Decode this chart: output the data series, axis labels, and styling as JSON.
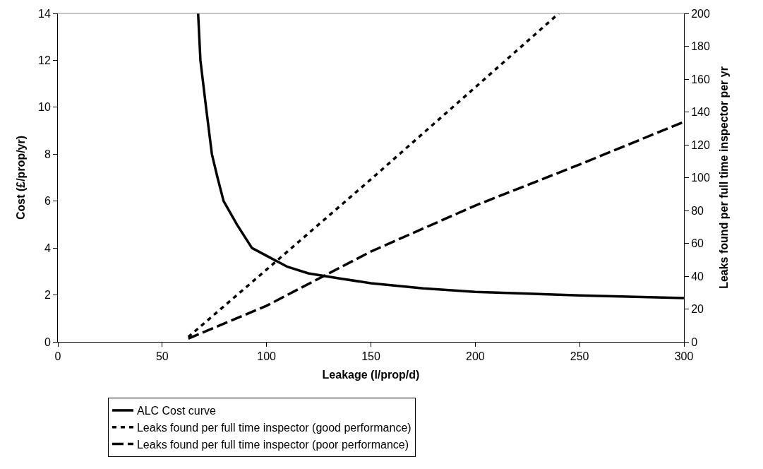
{
  "chart_data": {
    "type": "line",
    "xlabel": "Leakage (l/prop/d)",
    "ylabel": "Cost (£/prop/yr)",
    "y2label": "Leaks found per full time inspector per yr",
    "xlim": [
      0,
      300
    ],
    "xticks": [
      0,
      50,
      100,
      150,
      200,
      250,
      300
    ],
    "ylim": [
      0,
      14
    ],
    "yticks": [
      0,
      2,
      4,
      6,
      8,
      10,
      12,
      14
    ],
    "y2lim": [
      0,
      200
    ],
    "y2ticks": [
      0,
      20,
      40,
      60,
      80,
      100,
      120,
      140,
      160,
      180,
      200
    ],
    "grid": false,
    "legend": "bottom",
    "marker": "none",
    "series": [
      {
        "name": "ALC Cost curve",
        "color": "#000000",
        "line_style": "solid",
        "x": [
          67.2,
          68.3,
          71,
          73.8,
          76.5,
          79.4,
          85.8,
          93,
          100,
          110,
          120,
          135,
          150,
          175,
          200,
          250,
          300
        ],
        "values": [
          14,
          12,
          10,
          8,
          7,
          6,
          5,
          4,
          3.67,
          3.2,
          2.92,
          2.7,
          2.5,
          2.28,
          2.13,
          1.98,
          1.87
        ]
      },
      {
        "name": "Leaks found per full time inspector (good performance)",
        "color": "#000000",
        "line_style": "dotted",
        "axis": "y2",
        "x": [
          62.5,
          100,
          150,
          200,
          240
        ],
        "values": [
          3,
          44,
          99,
          155,
          200
        ]
      },
      {
        "name": "Leaks found per full time inspector (poor performance)",
        "color": "#000000",
        "line_style": "dashed",
        "axis": "y2",
        "x": [
          62.5,
          100,
          150,
          200,
          250,
          300
        ],
        "values": [
          2,
          22,
          55,
          83,
          108,
          134
        ]
      }
    ]
  }
}
